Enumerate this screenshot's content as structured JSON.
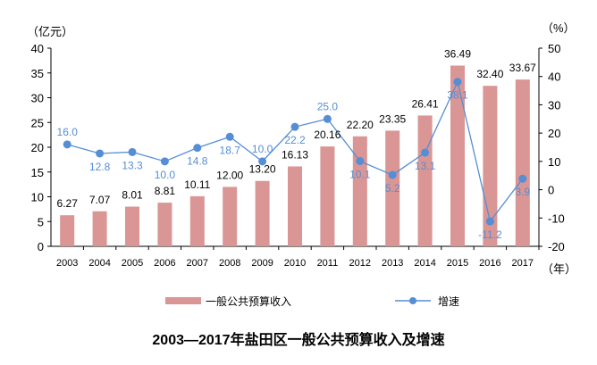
{
  "chart_data": {
    "type": "bar+line",
    "title": "2003—2017年盐田区一般公共预算收入及增速",
    "left_unit": "（亿元）",
    "right_unit": "（%）",
    "x_unit": "（年）",
    "categories": [
      "2003",
      "2004",
      "2005",
      "2006",
      "2007",
      "2008",
      "2009",
      "2010",
      "2011",
      "2012",
      "2013",
      "2014",
      "2015",
      "2016",
      "2017"
    ],
    "series": [
      {
        "name": "一般公共预算收入",
        "type": "bar",
        "axis": "left",
        "color": "#d99694",
        "label_color": "#000000",
        "values": [
          6.27,
          7.07,
          8.01,
          8.81,
          10.11,
          12.0,
          13.2,
          16.13,
          20.16,
          22.2,
          23.35,
          26.41,
          36.49,
          32.4,
          33.67
        ],
        "labels": [
          "6.27",
          "7.07",
          "8.01",
          "8.81",
          "10.11",
          "12.00",
          "13.20",
          "16.13",
          "20.16",
          "22.20",
          "23.35",
          "26.41",
          "36.49",
          "32.40",
          "33.67"
        ]
      },
      {
        "name": "增速",
        "type": "line",
        "axis": "right",
        "color": "#558ed5",
        "label_color": "#558ed5",
        "values": [
          16.0,
          12.8,
          13.3,
          10.0,
          14.8,
          18.7,
          10.0,
          22.2,
          25.0,
          10.1,
          5.2,
          13.1,
          38.1,
          -11.2,
          3.9
        ],
        "labels": [
          "16.0",
          "12.8",
          "13.3",
          "10.0",
          "14.8",
          "18.7",
          "10.0",
          "22.2",
          "25.0",
          "10.1",
          "5.2",
          "13.1",
          "38.1",
          "-11.2",
          "3.9"
        ]
      }
    ],
    "ylim_left": [
      0,
      40
    ],
    "yticks_left": [
      "0",
      "5",
      "10",
      "15",
      "20",
      "25",
      "30",
      "35",
      "40"
    ],
    "ylim_right": [
      -20,
      50
    ],
    "yticks_right": [
      "-20",
      "-10",
      "0",
      "10",
      "20",
      "30",
      "40",
      "50"
    ],
    "legend_position": "bottom",
    "grid": false
  }
}
